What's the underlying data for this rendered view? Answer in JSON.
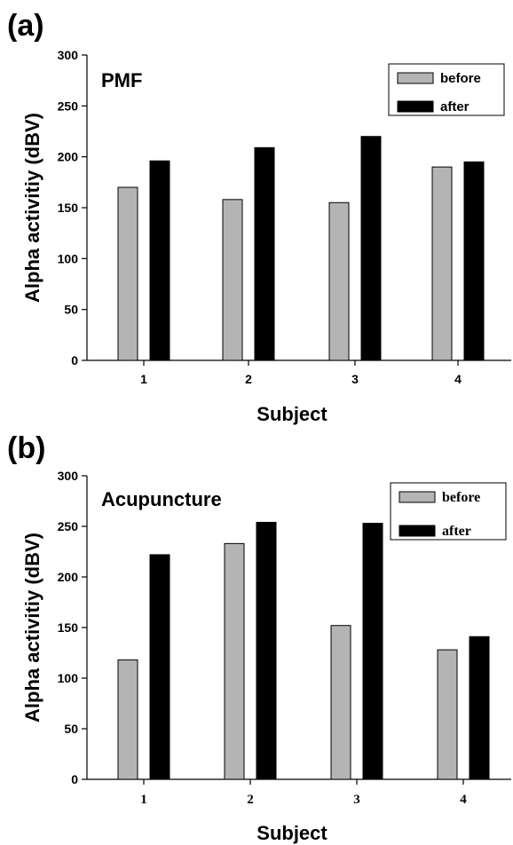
{
  "chart_data": [
    {
      "type": "bar",
      "panel_label": "(a)",
      "title": "PMF",
      "xlabel": "Subject",
      "ylabel": "Alpha activitiy (dBV)",
      "categories": [
        "1",
        "2",
        "3",
        "4"
      ],
      "ylim": [
        0,
        300
      ],
      "yticks": [
        0,
        50,
        100,
        150,
        200,
        250,
        300
      ],
      "series": [
        {
          "name": "before",
          "color": "#b4b4b4",
          "values": [
            170,
            158,
            155,
            190
          ]
        },
        {
          "name": "after",
          "color": "#000000",
          "values": [
            196,
            209,
            220,
            195
          ]
        }
      ],
      "grid": false,
      "legend_position": "top-right"
    },
    {
      "type": "bar",
      "panel_label": "(b)",
      "title": "Acupuncture",
      "xlabel": "Subject",
      "ylabel": "Alpha activitiy (dBV)",
      "categories": [
        "1",
        "2",
        "3",
        "4"
      ],
      "ylim": [
        0,
        300
      ],
      "yticks": [
        0,
        50,
        100,
        150,
        200,
        250,
        300
      ],
      "series": [
        {
          "name": "before",
          "color": "#b4b4b4",
          "values": [
            118,
            233,
            152,
            128
          ]
        },
        {
          "name": "after",
          "color": "#000000",
          "values": [
            222,
            254,
            253,
            141
          ]
        }
      ],
      "grid": false,
      "legend_position": "top-right"
    }
  ]
}
